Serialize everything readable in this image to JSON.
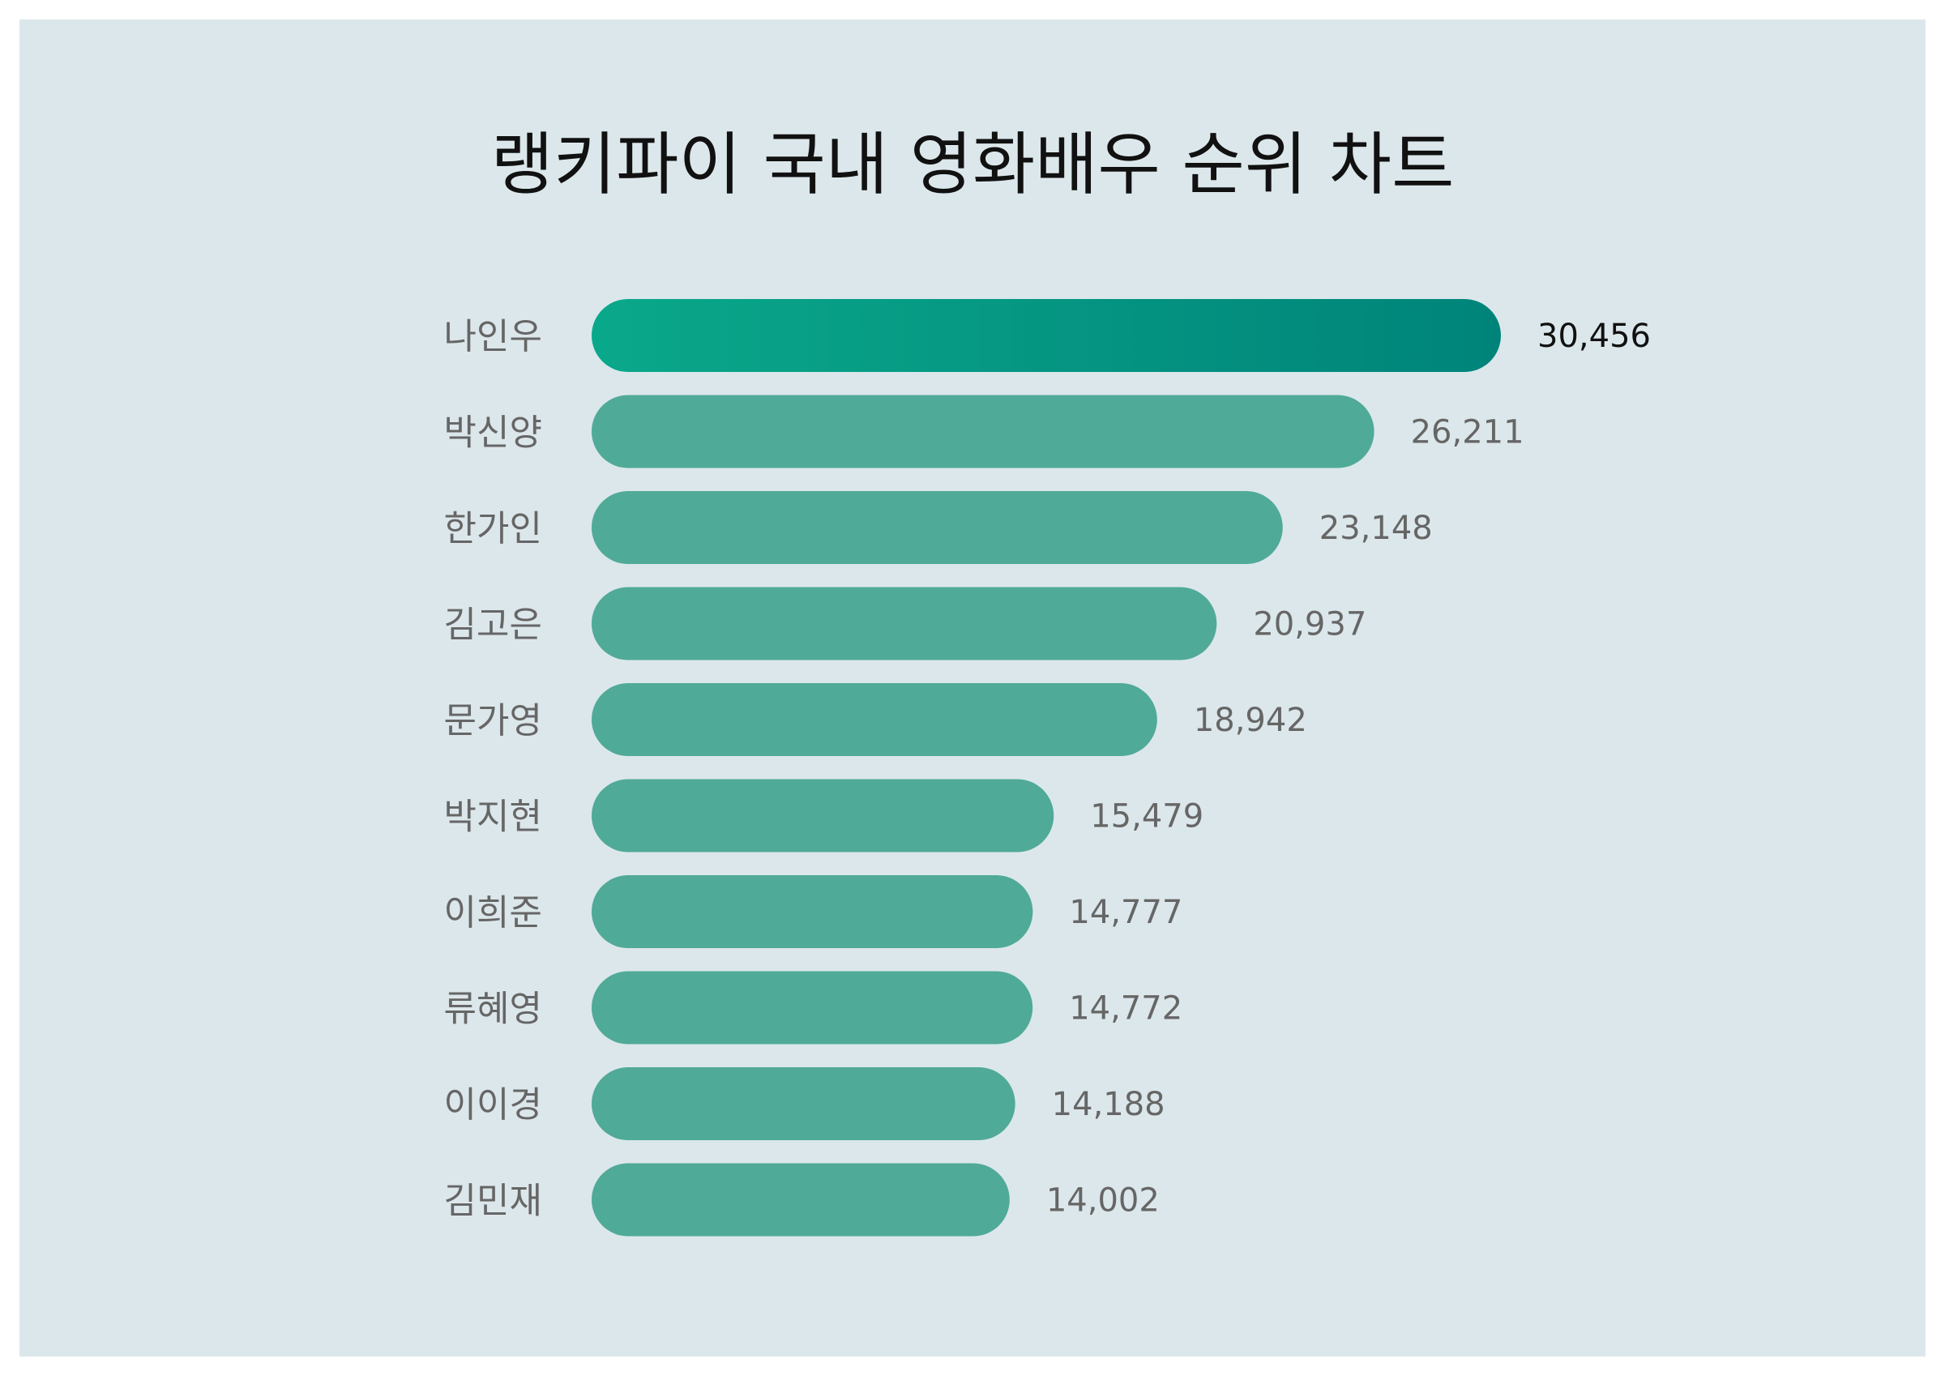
{
  "colors": {
    "background": "#dce7eb",
    "bar": "#50aa98",
    "top_bar_start": "#0aa88a",
    "top_bar_end": "#00847a",
    "label": "#666666",
    "top_value": "#111111",
    "title": "#111111"
  },
  "chart_data": {
    "type": "bar",
    "orientation": "horizontal",
    "title": "랭키파이 국내 영화배우 순위 차트",
    "categories": [
      "나인우",
      "박신양",
      "한가인",
      "김고은",
      "문가영",
      "박지현",
      "이희준",
      "류혜영",
      "이이경",
      "김민재"
    ],
    "values": [
      30456,
      26211,
      23148,
      20937,
      18942,
      15479,
      14777,
      14772,
      14188,
      14002
    ],
    "value_labels": [
      "30,456",
      "26,211",
      "23,148",
      "20,937",
      "18,942",
      "15,479",
      "14,777",
      "14,772",
      "14,188",
      "14,002"
    ],
    "xlim": [
      0,
      30456
    ],
    "grid": false,
    "legend": "none"
  }
}
